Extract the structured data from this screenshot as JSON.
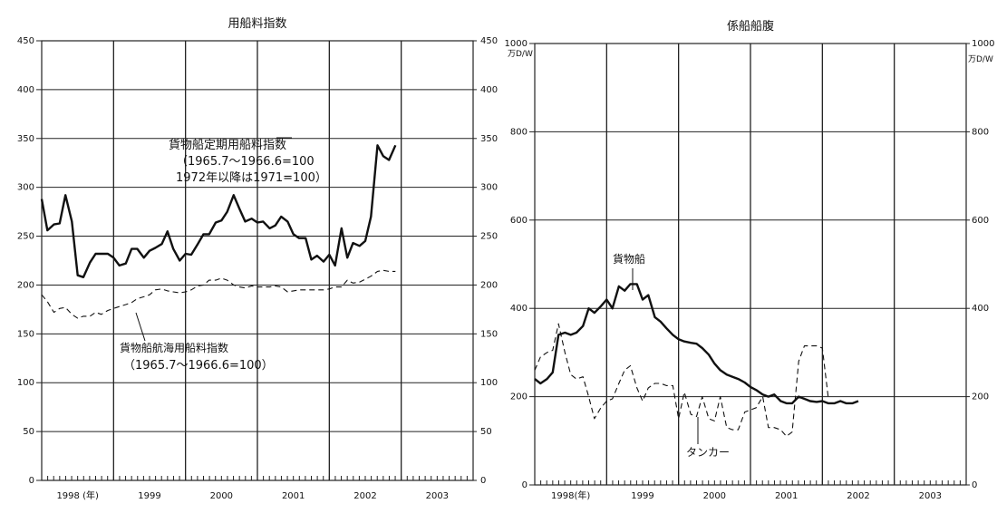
{
  "chart_data": [
    {
      "type": "line",
      "title": "用船料指数",
      "ylim": [
        0,
        450
      ],
      "yticks": [
        0,
        50,
        100,
        150,
        200,
        250,
        300,
        350,
        400,
        450
      ],
      "xlim": [
        1998.0,
        2004.0
      ],
      "year_labels": [
        {
          "label": "1998 (年)",
          "x": 1998.5
        },
        {
          "label": "1999",
          "x": 1999.5
        },
        {
          "label": "2000",
          "x": 2000.5
        },
        {
          "label": "2001",
          "x": 2001.5
        },
        {
          "label": "2002",
          "x": 2002.5
        },
        {
          "label": "2003",
          "x": 2003.5
        }
      ],
      "grid": true,
      "series": [
        {
          "name": "貨物船定期用船料指数",
          "style": "solid",
          "points": [
            [
              1998.0,
              288
            ],
            [
              1998.08,
              256
            ],
            [
              1998.17,
              262
            ],
            [
              1998.25,
              263
            ],
            [
              1998.33,
              292
            ],
            [
              1998.42,
              265
            ],
            [
              1998.5,
              210
            ],
            [
              1998.58,
              208
            ],
            [
              1998.67,
              223
            ],
            [
              1998.75,
              232
            ],
            [
              1998.83,
              232
            ],
            [
              1998.92,
              232
            ],
            [
              1999.0,
              228
            ],
            [
              1999.08,
              220
            ],
            [
              1999.17,
              222
            ],
            [
              1999.25,
              237
            ],
            [
              1999.33,
              237
            ],
            [
              1999.42,
              228
            ],
            [
              1999.5,
              235
            ],
            [
              1999.58,
              238
            ],
            [
              1999.67,
              242
            ],
            [
              1999.75,
              255
            ],
            [
              1999.83,
              237
            ],
            [
              1999.92,
              225
            ],
            [
              2000.0,
              232
            ],
            [
              2000.08,
              231
            ],
            [
              2000.17,
              242
            ],
            [
              2000.25,
              252
            ],
            [
              2000.33,
              252
            ],
            [
              2000.42,
              264
            ],
            [
              2000.5,
              266
            ],
            [
              2000.58,
              275
            ],
            [
              2000.67,
              292
            ],
            [
              2000.75,
              278
            ],
            [
              2000.83,
              265
            ],
            [
              2000.92,
              268
            ],
            [
              2001.0,
              264
            ],
            [
              2001.08,
              265
            ],
            [
              2001.17,
              258
            ],
            [
              2001.25,
              261
            ],
            [
              2001.33,
              270
            ],
            [
              2001.42,
              265
            ],
            [
              2001.5,
              252
            ],
            [
              2001.58,
              248
            ],
            [
              2001.67,
              248
            ],
            [
              2001.75,
              226
            ],
            [
              2001.83,
              230
            ],
            [
              2001.92,
              224
            ],
            [
              2002.0,
              231
            ],
            [
              2002.08,
              220
            ],
            [
              2002.17,
              258
            ],
            [
              2002.25,
              228
            ],
            [
              2002.33,
              243
            ],
            [
              2002.42,
              240
            ],
            [
              2002.5,
              245
            ],
            [
              2002.58,
              270
            ],
            [
              2002.67,
              343
            ],
            [
              2002.75,
              332
            ],
            [
              2002.83,
              328
            ],
            [
              2002.92,
              343
            ]
          ]
        },
        {
          "name": "貨物船航海用船料指数",
          "style": "dashed",
          "points": [
            [
              1998.0,
              190
            ],
            [
              1998.08,
              183
            ],
            [
              1998.17,
              172
            ],
            [
              1998.25,
              176
            ],
            [
              1998.33,
              177
            ],
            [
              1998.42,
              170
            ],
            [
              1998.5,
              166
            ],
            [
              1998.58,
              168
            ],
            [
              1998.67,
              168
            ],
            [
              1998.75,
              172
            ],
            [
              1998.83,
              170
            ],
            [
              1998.92,
              174
            ],
            [
              1999.0,
              176
            ],
            [
              1999.08,
              178
            ],
            [
              1999.17,
              180
            ],
            [
              1999.25,
              182
            ],
            [
              1999.33,
              186
            ],
            [
              1999.42,
              188
            ],
            [
              1999.5,
              190
            ],
            [
              1999.58,
              195
            ],
            [
              1999.67,
              196
            ],
            [
              1999.75,
              194
            ],
            [
              1999.83,
              193
            ],
            [
              1999.92,
              192
            ],
            [
              2000.0,
              193
            ],
            [
              2000.08,
              195
            ],
            [
              2000.17,
              199
            ],
            [
              2000.25,
              200
            ],
            [
              2000.33,
              205
            ],
            [
              2000.42,
              205
            ],
            [
              2000.5,
              207
            ],
            [
              2000.58,
              205
            ],
            [
              2000.67,
              200
            ],
            [
              2000.75,
              198
            ],
            [
              2000.83,
              197
            ],
            [
              2000.92,
              199
            ],
            [
              2001.0,
              198
            ],
            [
              2001.08,
              198
            ],
            [
              2001.17,
              198
            ],
            [
              2001.25,
              199
            ],
            [
              2001.33,
              198
            ],
            [
              2001.42,
              193
            ],
            [
              2001.5,
              194
            ],
            [
              2001.58,
              195
            ],
            [
              2001.67,
              195
            ],
            [
              2001.75,
              195
            ],
            [
              2001.83,
              195
            ],
            [
              2001.92,
              195
            ],
            [
              2002.0,
              196
            ],
            [
              2002.08,
              198
            ],
            [
              2002.17,
              198
            ],
            [
              2002.25,
              205
            ],
            [
              2002.33,
              202
            ],
            [
              2002.42,
              203
            ],
            [
              2002.5,
              206
            ],
            [
              2002.58,
              209
            ],
            [
              2002.67,
              214
            ],
            [
              2002.75,
              215
            ],
            [
              2002.83,
              214
            ],
            [
              2002.92,
              214
            ]
          ]
        }
      ],
      "annotations": [
        {
          "id": "teiki",
          "lines": [
            "貨物船定期用船料指数",
            "（1965.7～1966.6=100",
            "1972年以降は1971=100）"
          ]
        },
        {
          "id": "kokai",
          "lines": [
            "貨物船航海用船料指数",
            "（1965.7～1966.6=100）"
          ]
        }
      ]
    },
    {
      "type": "line",
      "title": "係船船腹",
      "ylim": [
        0,
        1000
      ],
      "yticks": [
        0,
        200,
        400,
        600,
        800,
        1000
      ],
      "unit_label": "万D/W",
      "xlim": [
        1998.0,
        2004.0
      ],
      "year_labels": [
        {
          "label": "1998(年)",
          "x": 1998.5
        },
        {
          "label": "1999",
          "x": 1999.5
        },
        {
          "label": "2000",
          "x": 2000.5
        },
        {
          "label": "2001",
          "x": 2001.5
        },
        {
          "label": "2002",
          "x": 2002.5
        },
        {
          "label": "2003",
          "x": 2003.5
        }
      ],
      "grid": true,
      "series": [
        {
          "name": "貨物船",
          "style": "solid",
          "points": [
            [
              1998.0,
              240
            ],
            [
              1998.08,
              230
            ],
            [
              1998.17,
              240
            ],
            [
              1998.25,
              255
            ],
            [
              1998.33,
              340
            ],
            [
              1998.42,
              345
            ],
            [
              1998.5,
              340
            ],
            [
              1998.58,
              345
            ],
            [
              1998.67,
              360
            ],
            [
              1998.75,
              400
            ],
            [
              1998.83,
              390
            ],
            [
              1998.92,
              405
            ],
            [
              1999.0,
              420
            ],
            [
              1999.08,
              400
            ],
            [
              1999.17,
              450
            ],
            [
              1999.25,
              440
            ],
            [
              1999.33,
              455
            ],
            [
              1999.42,
              455
            ],
            [
              1999.5,
              420
            ],
            [
              1999.58,
              430
            ],
            [
              1999.67,
              380
            ],
            [
              1999.75,
              370
            ],
            [
              1999.83,
              355
            ],
            [
              1999.92,
              340
            ],
            [
              2000.0,
              330
            ],
            [
              2000.08,
              325
            ],
            [
              2000.17,
              322
            ],
            [
              2000.25,
              320
            ],
            [
              2000.33,
              310
            ],
            [
              2000.42,
              295
            ],
            [
              2000.5,
              275
            ],
            [
              2000.58,
              260
            ],
            [
              2000.67,
              250
            ],
            [
              2000.75,
              245
            ],
            [
              2000.83,
              240
            ],
            [
              2000.92,
              232
            ],
            [
              2001.0,
              222
            ],
            [
              2001.08,
              215
            ],
            [
              2001.17,
              205
            ],
            [
              2001.25,
              200
            ],
            [
              2001.33,
              205
            ],
            [
              2001.42,
              190
            ],
            [
              2001.5,
              185
            ],
            [
              2001.58,
              185
            ],
            [
              2001.67,
              200
            ],
            [
              2001.75,
              195
            ],
            [
              2001.83,
              190
            ],
            [
              2001.92,
              188
            ],
            [
              2002.0,
              190
            ],
            [
              2002.08,
              185
            ],
            [
              2002.17,
              185
            ],
            [
              2002.25,
              190
            ],
            [
              2002.33,
              185
            ],
            [
              2002.42,
              185
            ],
            [
              2002.5,
              190
            ]
          ]
        },
        {
          "name": "タンカー",
          "style": "dashed",
          "points": [
            [
              1998.0,
              260
            ],
            [
              1998.08,
              290
            ],
            [
              1998.17,
              300
            ],
            [
              1998.25,
              305
            ],
            [
              1998.33,
              365
            ],
            [
              1998.42,
              300
            ],
            [
              1998.5,
              250
            ],
            [
              1998.58,
              240
            ],
            [
              1998.67,
              245
            ],
            [
              1998.75,
              200
            ],
            [
              1998.83,
              150
            ],
            [
              1998.92,
              175
            ],
            [
              1999.0,
              190
            ],
            [
              1999.08,
              195
            ],
            [
              1999.17,
              230
            ],
            [
              1999.25,
              260
            ],
            [
              1999.33,
              270
            ],
            [
              1999.42,
              220
            ],
            [
              1999.5,
              190
            ],
            [
              1999.58,
              220
            ],
            [
              1999.67,
              230
            ],
            [
              1999.75,
              230
            ],
            [
              1999.83,
              225
            ],
            [
              1999.92,
              225
            ],
            [
              2000.0,
              150
            ],
            [
              2000.08,
              210
            ],
            [
              2000.17,
              160
            ],
            [
              2000.25,
              155
            ],
            [
              2000.33,
              200
            ],
            [
              2000.42,
              150
            ],
            [
              2000.5,
              145
            ],
            [
              2000.58,
              200
            ],
            [
              2000.67,
              130
            ],
            [
              2000.75,
              125
            ],
            [
              2000.83,
              125
            ],
            [
              2000.92,
              165
            ],
            [
              2001.0,
              170
            ],
            [
              2001.08,
              175
            ],
            [
              2001.17,
              200
            ],
            [
              2001.25,
              130
            ],
            [
              2001.33,
              130
            ],
            [
              2001.42,
              125
            ],
            [
              2001.5,
              110
            ],
            [
              2001.58,
              120
            ],
            [
              2001.67,
              280
            ],
            [
              2001.75,
              315
            ],
            [
              2001.83,
              315
            ],
            [
              2001.92,
              315
            ],
            [
              2002.0,
              310
            ],
            [
              2002.08,
              200
            ]
          ]
        }
      ],
      "annotations": [
        {
          "id": "kamotsu",
          "lines": [
            "貨物船"
          ]
        },
        {
          "id": "tanker",
          "lines": [
            "タンカー"
          ]
        }
      ]
    }
  ]
}
